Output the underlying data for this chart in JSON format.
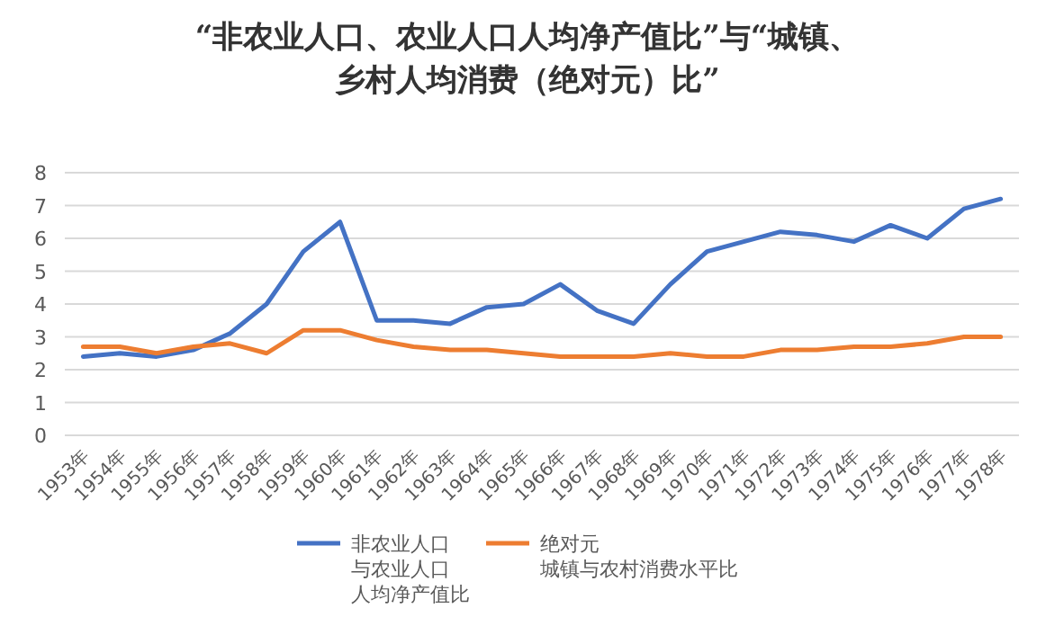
{
  "chart_data": {
    "type": "line",
    "title": "“非农业人口、农业人口人均净产值比”与“城镇、乡村人均消费（绝对元）比”",
    "categories": [
      "1953年",
      "1954年",
      "1955年",
      "1956年",
      "1957年",
      "1958年",
      "1959年",
      "1960年",
      "1961年",
      "1962年",
      "1963年",
      "1964年",
      "1965年",
      "1966年",
      "1967年",
      "1968年",
      "1969年",
      "1970年",
      "1971年",
      "1972年",
      "1973年",
      "1974年",
      "1975年",
      "1976年",
      "1977年",
      "1978年"
    ],
    "series": [
      {
        "name": "非农业人口与农业人口人均净产值比",
        "color": "#4472c4",
        "values": [
          2.4,
          2.5,
          2.4,
          2.6,
          3.1,
          4.0,
          5.6,
          6.5,
          3.5,
          3.5,
          3.4,
          3.9,
          4.0,
          4.6,
          3.8,
          3.4,
          4.6,
          5.6,
          5.9,
          6.2,
          6.1,
          5.9,
          6.4,
          6.0,
          6.9,
          7.2
        ]
      },
      {
        "name": "绝对元城镇与农村消费水平比",
        "color": "#ed7d31",
        "values": [
          2.7,
          2.7,
          2.5,
          2.7,
          2.8,
          2.5,
          3.2,
          3.2,
          2.9,
          2.7,
          2.6,
          2.6,
          2.5,
          2.4,
          2.4,
          2.4,
          2.5,
          2.4,
          2.4,
          2.6,
          2.6,
          2.7,
          2.7,
          2.8,
          3.0,
          3.0
        ]
      }
    ],
    "ylim": [
      0,
      8
    ],
    "yticks": [
      0,
      1,
      2,
      3,
      4,
      5,
      6,
      7,
      8
    ],
    "grid": "y",
    "legend": "bottom",
    "marker": "none",
    "line_style": "solid"
  }
}
